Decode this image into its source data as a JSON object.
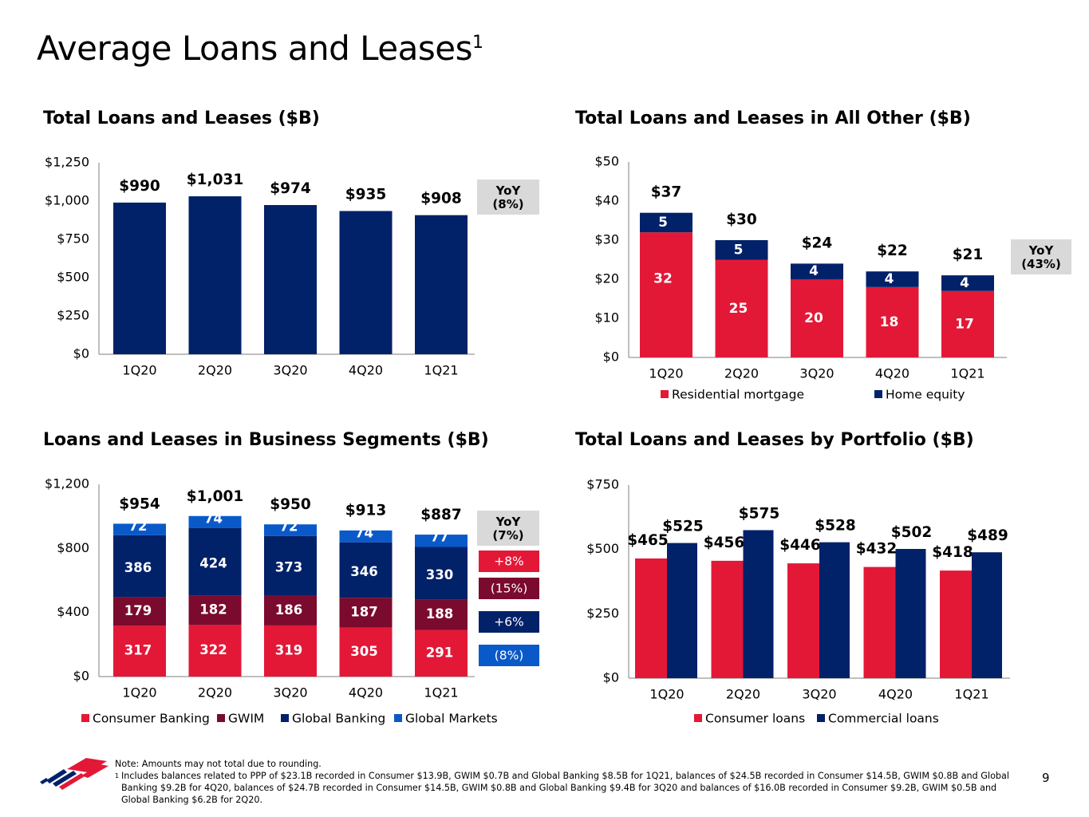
{
  "page": {
    "title": "Average Loans and Leases",
    "title_sup": "1",
    "page_number": "9"
  },
  "colors": {
    "navy": "#012169",
    "red": "#E31837",
    "maroon": "#7A0A2E",
    "blue": "#0A59C9",
    "grey": "#D9D9D9",
    "axis": "#7F7F7F"
  },
  "notes": {
    "note": "Note: Amounts may not total due to rounding.",
    "footnote_mark": "1",
    "footnote": "Includes balances related to PPP of $23.1B recorded in Consumer $13.9B, GWIM $0.7B and Global Banking $8.5B for 1Q21, balances of $24.5B recorded in Consumer $14.5B, GWIM $0.8B and Global Banking $9.2B for 4Q20, balances of $24.7B recorded in Consumer $14.5B, GWIM $0.8B and Global Banking $9.4B for 3Q20 and balances of $16.0B recorded in Consumer $9.2B, GWIM $0.5B and Global Banking $6.2B for 2Q20."
  },
  "chart_data": [
    {
      "id": "total",
      "type": "bar",
      "title": "Total Loans and Leases ($B)",
      "categories": [
        "1Q20",
        "2Q20",
        "3Q20",
        "4Q20",
        "1Q21"
      ],
      "values": [
        990,
        1031,
        974,
        935,
        908
      ],
      "value_labels": [
        "$990",
        "$1,031",
        "$974",
        "$935",
        "$908"
      ],
      "ylim": [
        0,
        1250
      ],
      "yticks": [
        0,
        250,
        500,
        750,
        1000,
        1250
      ],
      "ytick_labels": [
        "$0",
        "$250",
        "$500",
        "$750",
        "$1,000",
        "$1,250"
      ],
      "yoy_box": {
        "label": "YoY",
        "value": "(8%)"
      }
    },
    {
      "id": "allother",
      "type": "bar",
      "stacked": true,
      "title": "Total Loans and Leases in All Other ($B)",
      "categories": [
        "1Q20",
        "2Q20",
        "3Q20",
        "4Q20",
        "1Q21"
      ],
      "series": [
        {
          "name": "Residential mortgage",
          "values": [
            32,
            25,
            20,
            18,
            17
          ]
        },
        {
          "name": "Home equity",
          "values": [
            5,
            5,
            4,
            4,
            4
          ]
        }
      ],
      "totals": [
        37,
        30,
        24,
        22,
        21
      ],
      "total_labels": [
        "$37",
        "$30",
        "$24",
        "$22",
        "$21"
      ],
      "ylim": [
        0,
        50
      ],
      "yticks": [
        0,
        10,
        20,
        30,
        40,
        50
      ],
      "ytick_labels": [
        "$0",
        "$10",
        "$20",
        "$30",
        "$40",
        "$50"
      ],
      "legend": [
        "Residential mortgage",
        "Home equity"
      ],
      "yoy_box": {
        "label": "YoY",
        "value": "(43%)"
      }
    },
    {
      "id": "segments",
      "type": "bar",
      "stacked": true,
      "title": "Loans and Leases in Business Segments ($B)",
      "categories": [
        "1Q20",
        "2Q20",
        "3Q20",
        "4Q20",
        "1Q21"
      ],
      "series": [
        {
          "name": "Consumer Banking",
          "values": [
            317,
            322,
            319,
            305,
            291
          ]
        },
        {
          "name": "GWIM",
          "values": [
            179,
            182,
            186,
            187,
            188
          ]
        },
        {
          "name": "Global Banking",
          "values": [
            386,
            424,
            373,
            346,
            330
          ]
        },
        {
          "name": "Global Markets",
          "values": [
            72,
            74,
            72,
            74,
            77
          ]
        }
      ],
      "totals": [
        954,
        1001,
        950,
        913,
        887
      ],
      "total_labels": [
        "$954",
        "$1,001",
        "$950",
        "$913",
        "$887"
      ],
      "ylim": [
        0,
        1200
      ],
      "yticks": [
        0,
        400,
        800,
        1200
      ],
      "ytick_labels": [
        "$0",
        "$400",
        "$800",
        "$1,200"
      ],
      "legend": [
        "Consumer Banking",
        "GWIM",
        "Global Banking",
        "Global Markets"
      ],
      "yoy_box": {
        "label": "YoY",
        "value": "(7%)"
      },
      "yoy_series": [
        "+8%",
        "(15%)",
        "+6%",
        "(8%)"
      ]
    },
    {
      "id": "portfolio",
      "type": "bar",
      "grouped": true,
      "title": "Total Loans and Leases by Portfolio ($B)",
      "categories": [
        "1Q20",
        "2Q20",
        "3Q20",
        "4Q20",
        "1Q21"
      ],
      "series": [
        {
          "name": "Consumer loans",
          "values": [
            465,
            456,
            446,
            432,
            418
          ],
          "labels": [
            "$465",
            "$456",
            "$446",
            "$432",
            "$418"
          ]
        },
        {
          "name": "Commercial loans",
          "values": [
            525,
            575,
            528,
            502,
            489
          ],
          "labels": [
            "$525",
            "$575",
            "$528",
            "$502",
            "$489"
          ]
        }
      ],
      "ylim": [
        0,
        750
      ],
      "yticks": [
        0,
        250,
        500,
        750
      ],
      "ytick_labels": [
        "$0",
        "$250",
        "$500",
        "$750"
      ],
      "legend": [
        "Consumer loans",
        "Commercial loans"
      ]
    }
  ]
}
